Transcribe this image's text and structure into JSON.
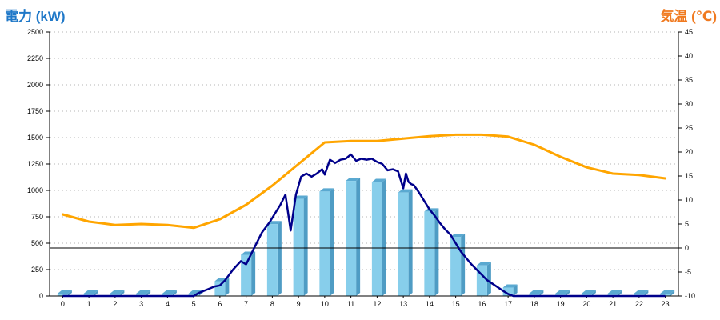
{
  "colors": {
    "left_title": "#1f78c8",
    "right_title": "#f07a20",
    "bar_front": "#87ceeb",
    "bar_side": "#4f9cc4",
    "bar_top": "#5aa9d1",
    "power_line": "#00008b",
    "temperature_line": "#ffa500",
    "grid": "#b4b4b4",
    "axis": "#000000"
  },
  "chart_data": {
    "type": "bar",
    "left_axis_title": "電力 (kW)",
    "right_axis_title": "気温 (℃)",
    "categories": [
      "0",
      "1",
      "2",
      "3",
      "4",
      "5",
      "6",
      "7",
      "8",
      "9",
      "10",
      "11",
      "12",
      "13",
      "14",
      "15",
      "16",
      "17",
      "18",
      "19",
      "20",
      "21",
      "22",
      "23"
    ],
    "y_left": {
      "range": [
        0,
        2500
      ],
      "ticks": [
        "0",
        "250",
        "500",
        "750",
        "1000",
        "1250",
        "1500",
        "1750",
        "2000",
        "2250",
        "2500"
      ]
    },
    "y_right": {
      "range": [
        -10,
        45
      ],
      "ticks": [
        "-10",
        "-5",
        "0",
        "5",
        "10",
        "15",
        "20",
        "25",
        "30",
        "35",
        "40",
        "45"
      ]
    },
    "grid": true,
    "bars": {
      "axis": "left",
      "values": [
        0,
        0,
        0,
        0,
        0,
        0,
        140,
        390,
        680,
        920,
        990,
        1090,
        1080,
        980,
        800,
        560,
        290,
        80,
        0,
        0,
        0,
        0,
        0,
        0
      ]
    },
    "power_line": {
      "axis": "left",
      "x": [
        0,
        1,
        2,
        3,
        4,
        5,
        5.2,
        5.5,
        5.8,
        6,
        6.2,
        6.5,
        6.8,
        7,
        7.3,
        7.6,
        7.9,
        8.1,
        8.3,
        8.5,
        8.7,
        8.9,
        9.1,
        9.3,
        9.5,
        9.7,
        9.9,
        10,
        10.2,
        10.4,
        10.6,
        10.8,
        11,
        11.2,
        11.4,
        11.6,
        11.8,
        12,
        12.2,
        12.4,
        12.6,
        12.8,
        13,
        13.1,
        13.2,
        13.3,
        13.4,
        13.6,
        13.8,
        14,
        14.2,
        14.4,
        14.6,
        14.8,
        15,
        15.2,
        15.4,
        15.6,
        15.8,
        16,
        16.2,
        16.5,
        16.8,
        17,
        17.2,
        18,
        19,
        20,
        21,
        22,
        23
      ],
      "y": [
        0,
        0,
        0,
        0,
        0,
        0,
        30,
        60,
        90,
        100,
        150,
        250,
        330,
        300,
        450,
        600,
        700,
        780,
        860,
        960,
        620,
        960,
        1130,
        1160,
        1130,
        1160,
        1200,
        1150,
        1290,
        1260,
        1290,
        1300,
        1340,
        1280,
        1300,
        1290,
        1300,
        1270,
        1250,
        1190,
        1200,
        1180,
        1020,
        1160,
        1080,
        1060,
        1050,
        980,
        900,
        820,
        760,
        690,
        630,
        580,
        500,
        420,
        360,
        300,
        250,
        200,
        150,
        100,
        50,
        20,
        0,
        0,
        0,
        0,
        0,
        0,
        0
      ]
    },
    "temperature_line": {
      "axis": "right",
      "x": [
        0,
        1,
        2,
        3,
        4,
        5,
        6,
        7,
        8,
        9,
        10,
        11,
        12,
        13,
        14,
        15,
        16,
        17,
        18,
        19,
        20,
        21,
        22,
        23
      ],
      "y": [
        7,
        5.5,
        4.8,
        5,
        4.8,
        4.2,
        6,
        9,
        13,
        17.5,
        22,
        22.3,
        22.3,
        22.8,
        23.3,
        23.6,
        23.6,
        23.2,
        21.5,
        19,
        16.8,
        15.5,
        15.2,
        14.5
      ]
    }
  }
}
